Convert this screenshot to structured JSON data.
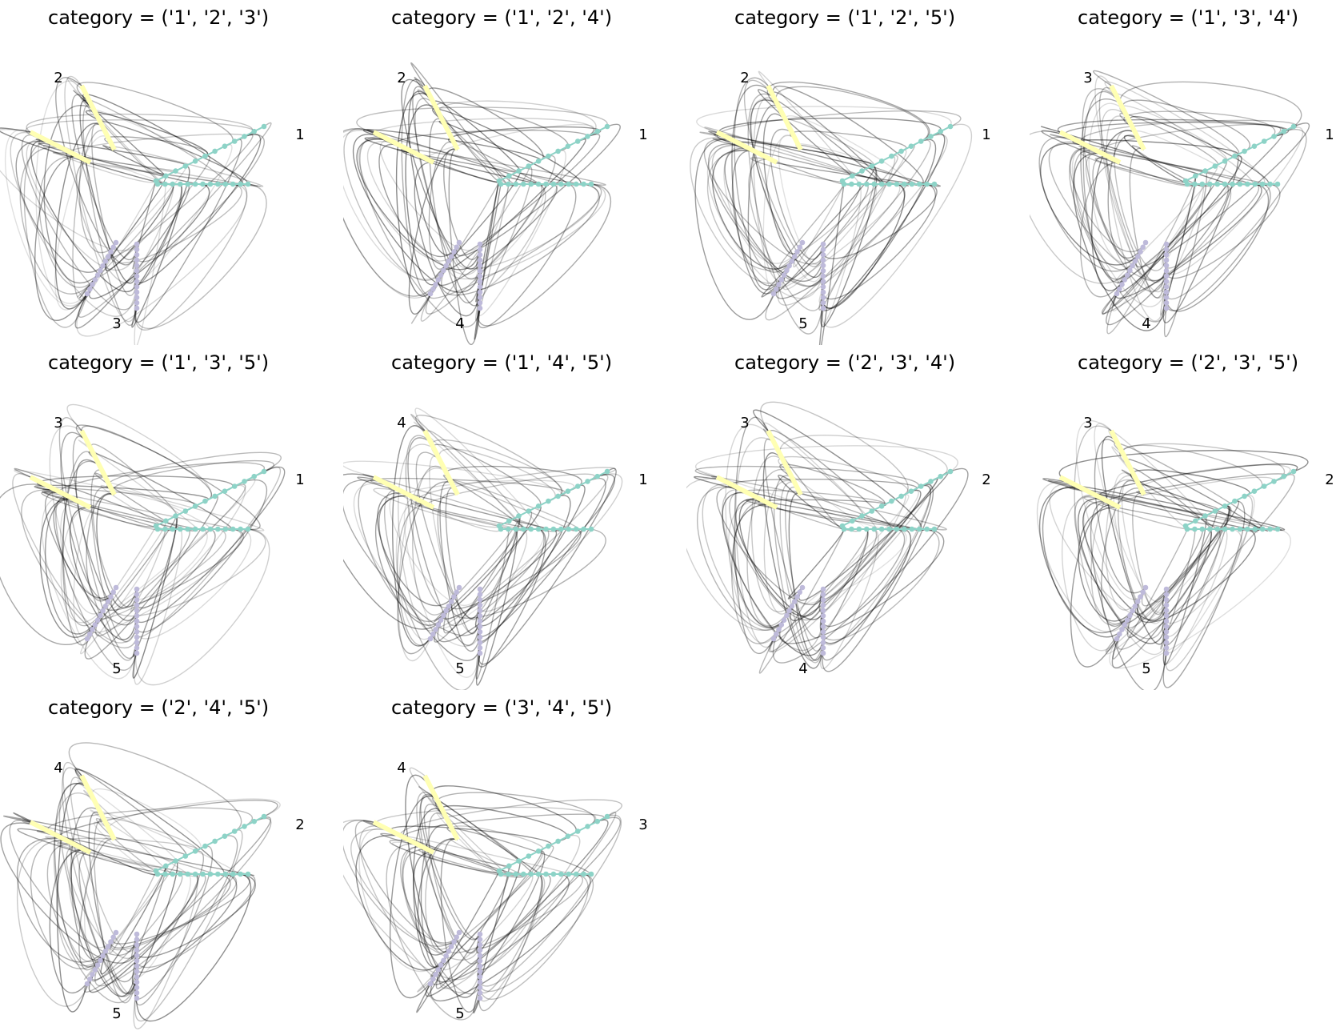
{
  "figure": {
    "title_prefix": "category = ",
    "colors": {
      "group_a": "#8dd3c7",
      "group_b": "#ffffb3",
      "group_c": "#bebada",
      "edge": "#000000"
    },
    "panels": [
      {
        "title": "category = ('1', '2', '3')",
        "labels": [
          "1",
          "2",
          "3"
        ]
      },
      {
        "title": "category = ('1', '2', '4')",
        "labels": [
          "1",
          "2",
          "4"
        ]
      },
      {
        "title": "category = ('1', '2', '5')",
        "labels": [
          "1",
          "2",
          "5"
        ]
      },
      {
        "title": "category = ('1', '3', '4')",
        "labels": [
          "1",
          "3",
          "4"
        ]
      },
      {
        "title": "category = ('1', '3', '5')",
        "labels": [
          "1",
          "3",
          "5"
        ]
      },
      {
        "title": "category = ('1', '4', '5')",
        "labels": [
          "1",
          "4",
          "5"
        ]
      },
      {
        "title": "category = ('2', '3', '4')",
        "labels": [
          "2",
          "3",
          "4"
        ]
      },
      {
        "title": "category = ('2', '3', '5')",
        "labels": [
          "2",
          "3",
          "5"
        ]
      },
      {
        "title": "category = ('2', '4', '5')",
        "labels": [
          "2",
          "4",
          "5"
        ]
      },
      {
        "title": "category = ('3', '4', '5')",
        "labels": [
          "3",
          "4",
          "5"
        ]
      }
    ]
  }
}
